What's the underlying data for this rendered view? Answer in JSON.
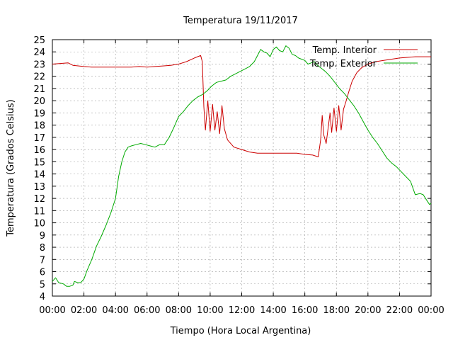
{
  "chart_data": {
    "type": "line",
    "title": "Temperatura 19/11/2017",
    "xlabel": "Tiempo (Hora Local Argentina)",
    "ylabel": "Temperatura (Grados Celsius)",
    "xlim": [
      0,
      24
    ],
    "ylim": [
      4,
      25
    ],
    "x_tick_labels": [
      "00:00",
      "02:00",
      "04:00",
      "06:00",
      "08:00",
      "10:00",
      "12:00",
      "14:00",
      "16:00",
      "18:00",
      "20:00",
      "22:00",
      "00:00"
    ],
    "y_ticks": [
      4,
      5,
      6,
      7,
      8,
      9,
      10,
      11,
      12,
      13,
      14,
      15,
      16,
      17,
      18,
      19,
      20,
      21,
      22,
      23,
      24,
      25
    ],
    "grid": true,
    "legend_position": "top-right",
    "series": [
      {
        "name": "Temp. Interior",
        "color": "#cc0000",
        "points": [
          [
            0,
            23.0
          ],
          [
            1.0,
            23.1
          ],
          [
            1.3,
            22.9
          ],
          [
            2.0,
            22.8
          ],
          [
            2.5,
            22.75
          ],
          [
            4.0,
            22.75
          ],
          [
            5.0,
            22.75
          ],
          [
            5.5,
            22.8
          ],
          [
            6.0,
            22.75
          ],
          [
            6.5,
            22.8
          ],
          [
            7.0,
            22.85
          ],
          [
            7.5,
            22.9
          ],
          [
            8.0,
            23.0
          ],
          [
            8.5,
            23.2
          ],
          [
            9.0,
            23.5
          ],
          [
            9.4,
            23.7
          ],
          [
            9.5,
            23.2
          ],
          [
            9.6,
            19.5
          ],
          [
            9.7,
            17.6
          ],
          [
            9.85,
            20.0
          ],
          [
            10.0,
            17.5
          ],
          [
            10.15,
            19.7
          ],
          [
            10.3,
            17.6
          ],
          [
            10.45,
            19.1
          ],
          [
            10.6,
            17.3
          ],
          [
            10.75,
            19.6
          ],
          [
            10.9,
            17.7
          ],
          [
            11.1,
            16.8
          ],
          [
            11.5,
            16.2
          ],
          [
            12.0,
            16.0
          ],
          [
            12.5,
            15.8
          ],
          [
            13.0,
            15.7
          ],
          [
            14.0,
            15.7
          ],
          [
            15.0,
            15.7
          ],
          [
            15.5,
            15.7
          ],
          [
            16.0,
            15.6
          ],
          [
            16.5,
            15.55
          ],
          [
            16.85,
            15.4
          ],
          [
            17.0,
            16.8
          ],
          [
            17.1,
            18.8
          ],
          [
            17.2,
            17.2
          ],
          [
            17.35,
            16.5
          ],
          [
            17.5,
            18.0
          ],
          [
            17.6,
            19.0
          ],
          [
            17.7,
            17.4
          ],
          [
            17.85,
            19.4
          ],
          [
            18.0,
            17.5
          ],
          [
            18.15,
            19.6
          ],
          [
            18.3,
            17.6
          ],
          [
            18.45,
            19.3
          ],
          [
            18.6,
            19.9
          ],
          [
            18.8,
            20.8
          ],
          [
            19.0,
            21.6
          ],
          [
            19.3,
            22.3
          ],
          [
            19.6,
            22.7
          ],
          [
            20.0,
            23.0
          ],
          [
            20.5,
            23.2
          ],
          [
            21.0,
            23.3
          ],
          [
            22.0,
            23.5
          ],
          [
            23.0,
            23.6
          ],
          [
            24.0,
            23.6
          ]
        ]
      },
      {
        "name": "Temp. Exterior",
        "color": "#00aa00",
        "points": [
          [
            0,
            5.2
          ],
          [
            0.2,
            5.5
          ],
          [
            0.4,
            5.1
          ],
          [
            0.7,
            5.0
          ],
          [
            0.9,
            4.8
          ],
          [
            1.1,
            4.8
          ],
          [
            1.3,
            4.9
          ],
          [
            1.4,
            5.2
          ],
          [
            1.6,
            5.1
          ],
          [
            1.8,
            5.1
          ],
          [
            2.0,
            5.4
          ],
          [
            2.2,
            6.1
          ],
          [
            2.5,
            7.0
          ],
          [
            2.8,
            8.1
          ],
          [
            3.1,
            8.9
          ],
          [
            3.4,
            9.8
          ],
          [
            3.7,
            10.8
          ],
          [
            4.0,
            12.0
          ],
          [
            4.2,
            13.8
          ],
          [
            4.4,
            15.0
          ],
          [
            4.6,
            15.8
          ],
          [
            4.8,
            16.2
          ],
          [
            5.0,
            16.3
          ],
          [
            5.3,
            16.4
          ],
          [
            5.6,
            16.5
          ],
          [
            5.9,
            16.4
          ],
          [
            6.2,
            16.3
          ],
          [
            6.5,
            16.2
          ],
          [
            6.8,
            16.4
          ],
          [
            7.1,
            16.4
          ],
          [
            7.4,
            17.0
          ],
          [
            7.7,
            17.8
          ],
          [
            8.0,
            18.7
          ],
          [
            8.3,
            19.1
          ],
          [
            8.6,
            19.6
          ],
          [
            8.9,
            20.0
          ],
          [
            9.2,
            20.3
          ],
          [
            9.5,
            20.5
          ],
          [
            9.8,
            20.8
          ],
          [
            10.1,
            21.2
          ],
          [
            10.4,
            21.5
          ],
          [
            10.7,
            21.6
          ],
          [
            11.0,
            21.7
          ],
          [
            11.3,
            22.0
          ],
          [
            11.6,
            22.2
          ],
          [
            11.9,
            22.4
          ],
          [
            12.2,
            22.6
          ],
          [
            12.5,
            22.8
          ],
          [
            12.8,
            23.2
          ],
          [
            13.0,
            23.7
          ],
          [
            13.2,
            24.2
          ],
          [
            13.4,
            24.0
          ],
          [
            13.6,
            23.9
          ],
          [
            13.8,
            23.6
          ],
          [
            14.0,
            24.2
          ],
          [
            14.2,
            24.4
          ],
          [
            14.4,
            24.1
          ],
          [
            14.6,
            24.0
          ],
          [
            14.8,
            24.5
          ],
          [
            15.0,
            24.3
          ],
          [
            15.2,
            23.8
          ],
          [
            15.4,
            23.7
          ],
          [
            15.6,
            23.5
          ],
          [
            15.8,
            23.4
          ],
          [
            16.0,
            23.3
          ],
          [
            16.2,
            23.0
          ],
          [
            16.4,
            23.1
          ],
          [
            16.6,
            23.2
          ],
          [
            16.8,
            22.9
          ],
          [
            17.0,
            22.7
          ],
          [
            17.3,
            22.4
          ],
          [
            17.6,
            22.0
          ],
          [
            17.9,
            21.5
          ],
          [
            18.2,
            21.0
          ],
          [
            18.5,
            20.6
          ],
          [
            18.8,
            20.1
          ],
          [
            19.1,
            19.6
          ],
          [
            19.4,
            19.0
          ],
          [
            19.7,
            18.3
          ],
          [
            20.0,
            17.6
          ],
          [
            20.3,
            17.0
          ],
          [
            20.6,
            16.5
          ],
          [
            20.9,
            15.9
          ],
          [
            21.2,
            15.3
          ],
          [
            21.5,
            14.9
          ],
          [
            21.8,
            14.6
          ],
          [
            22.1,
            14.2
          ],
          [
            22.4,
            13.8
          ],
          [
            22.7,
            13.4
          ],
          [
            23.0,
            12.3
          ],
          [
            23.3,
            12.4
          ],
          [
            23.5,
            12.3
          ],
          [
            23.7,
            11.9
          ],
          [
            23.9,
            11.5
          ],
          [
            24.0,
            11.6
          ]
        ]
      }
    ]
  }
}
